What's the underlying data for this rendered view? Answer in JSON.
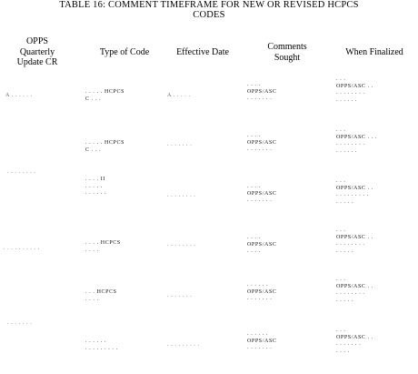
{
  "table": {
    "title_line1": "TABLE 16:   COMMENT TIMEFRAME FOR NEW OR REVISED HCPCS",
    "title_line2": "CODES",
    "headers": {
      "opps": [
        "OPPS",
        "Quarterly",
        "Update CR"
      ],
      "type_of_code": "Type of Code",
      "effective_date": "Effective Date",
      "comments_sought": [
        "Comments",
        "Sought"
      ],
      "when_finalized": "When Finalized"
    },
    "cells": {
      "opps_1": "A . . . . . .",
      "opps_2": ". . . . . . . .",
      "opps_3": ". . . . . . . . . .",
      "opps_4": ". . . . . . .",
      "type_1": [
        ". . . . . HCPCS",
        "C . . ."
      ],
      "type_2": [
        ". . . . . HCPCS",
        "C . . ."
      ],
      "type_3": [
        ". . . .  II",
        ". . . . .",
        ". . .  . . ."
      ],
      "type_4": [
        ". . . . HCPCS",
        ". . . ."
      ],
      "type_5": [
        ". . . HCPCS",
        ". . . ."
      ],
      "type_6": [
        ". . . .  . .",
        ". . . .  . . . . ."
      ],
      "eff_1": "A . . . . .",
      "eff_2": ". . . . . . .",
      "eff_3": ". . . . . . . .",
      "eff_4": ". . . . . . . .",
      "eff_5": ". . . . . . .",
      "eff_6": ". . . . . . . . .",
      "com_1": [
        ". . . .",
        "OPPS/ASC",
        ". . . . . . ."
      ],
      "com_2": [
        ". . . .",
        "OPPS/ASC",
        ". . . . . . ."
      ],
      "com_3": [
        ". . . .",
        "OPPS/ASC",
        ". . . . . . ."
      ],
      "com_4": [
        ". . . .",
        "OPPS/ASC",
        ". . . ."
      ],
      "com_5": [
        ". . . . . .",
        "OPPS/ASC",
        ". . . . . . ."
      ],
      "com_6": [
        ". . . . . .",
        "OPPS/ASC",
        ". . . . . . ."
      ],
      "fin_1": [
        ". . .",
        "OPPS/ASC . .",
        ". . . . . . . .",
        ". . . . . ."
      ],
      "fin_2": [
        ". . .",
        "OPPS/ASC . . .",
        ". . . . . . . .",
        ". . . . . ."
      ],
      "fin_3": [
        ". . .",
        "OPPS/ASC . .",
        ". . . . . . . . .",
        ". . . . ."
      ],
      "fin_4": [
        ". . .",
        "OPPS/ASC . .",
        ". . . . . . . .",
        ". . . . ."
      ],
      "fin_5": [
        ". . .",
        "OPPS/ASC . .",
        ". . . . . . . .",
        ". . . . ."
      ],
      "fin_6": [
        ". . .",
        "OPPS/ASC . .",
        ". . . . . . .",
        ". . . ."
      ]
    }
  }
}
